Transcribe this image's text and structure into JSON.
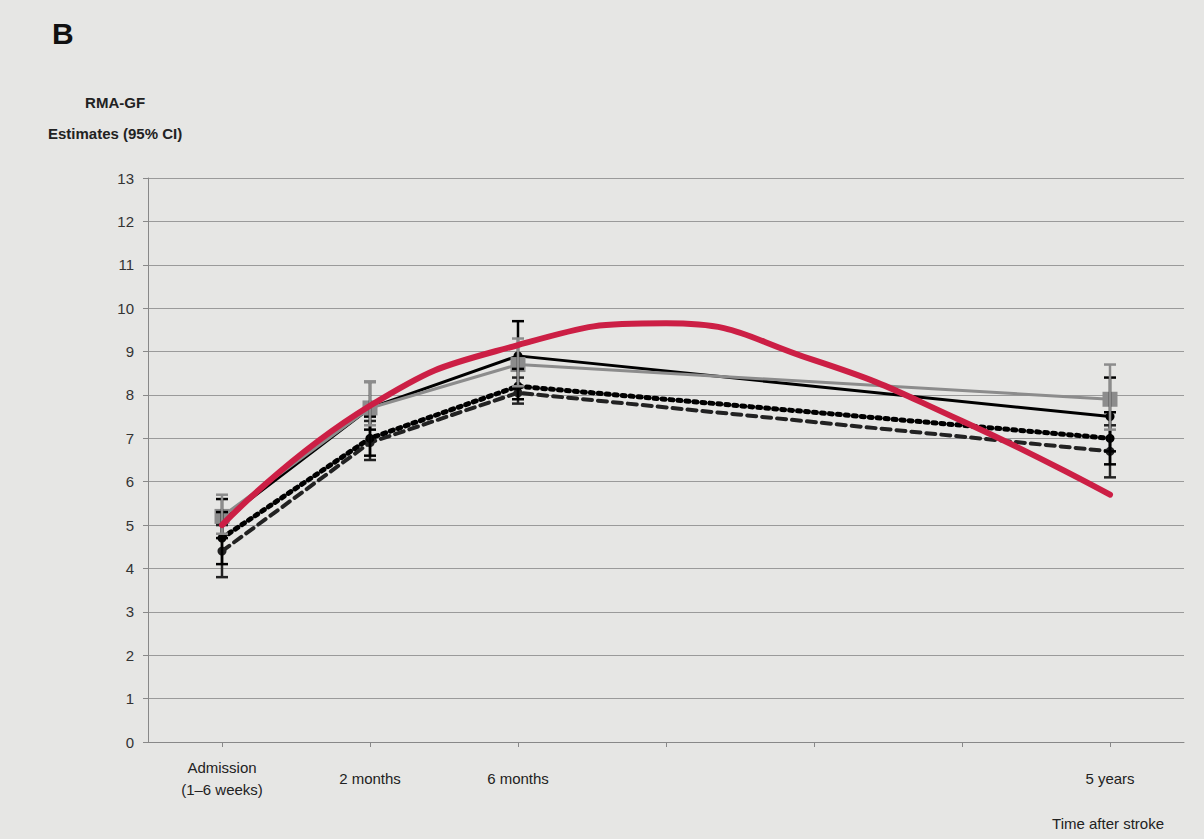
{
  "chart_data": {
    "type": "line",
    "title": "B",
    "ylabel": [
      "RMA-GF",
      "Estimates (95% CI)"
    ],
    "xlabel": "Time after stroke",
    "categories": [
      "Admission (1–6 weeks)",
      "2 months",
      "6 months",
      null,
      null,
      null,
      "5 years"
    ],
    "ylim": [
      0,
      13
    ],
    "yticks": [
      0,
      1,
      2,
      3,
      4,
      5,
      6,
      7,
      8,
      9,
      10,
      11,
      12,
      13
    ],
    "grid": true,
    "series": [
      {
        "type": "line",
        "color": "#222222",
        "line_style": "dashed",
        "marker": "circle",
        "values": [
          4.4,
          6.9,
          8.05,
          null,
          null,
          null,
          6.7
        ],
        "ci": [
          [
            3.8,
            5.0
          ],
          [
            6.5,
            7.4
          ],
          [
            7.8,
            8.4
          ],
          null,
          null,
          null,
          [
            6.1,
            7.3
          ]
        ]
      },
      {
        "type": "line",
        "color": "#000000",
        "line_style": "dotted",
        "marker": "circle",
        "values": [
          4.7,
          7.0,
          8.2,
          null,
          null,
          null,
          7.0
        ],
        "ci": [
          [
            4.1,
            5.3
          ],
          [
            6.6,
            7.5
          ],
          [
            7.9,
            8.6
          ],
          null,
          null,
          null,
          [
            6.4,
            7.6
          ]
        ]
      },
      {
        "type": "line",
        "color": "#000000",
        "line_style": "solid",
        "marker": "circle",
        "values": [
          5.1,
          7.7,
          8.9,
          null,
          null,
          null,
          7.5
        ],
        "ci": [
          [
            4.7,
            5.6
          ],
          [
            7.2,
            8.3
          ],
          [
            8.2,
            9.7
          ],
          null,
          null,
          null,
          [
            6.7,
            8.4
          ]
        ]
      },
      {
        "type": "line",
        "color": "#8c8c8c",
        "line_style": "solid",
        "marker": "square",
        "values": [
          5.2,
          7.7,
          8.7,
          null,
          null,
          null,
          7.9
        ],
        "ci": [
          [
            4.8,
            5.7
          ],
          [
            7.3,
            8.3
          ],
          [
            8.2,
            9.3
          ],
          null,
          null,
          null,
          [
            7.2,
            8.7
          ]
        ]
      },
      {
        "type": "curve",
        "color": "#cc1f45",
        "line_style": "solid",
        "values": [
          5.0,
          7.75,
          9.15,
          9.65,
          8.8,
          7.4,
          5.7
        ]
      }
    ]
  }
}
